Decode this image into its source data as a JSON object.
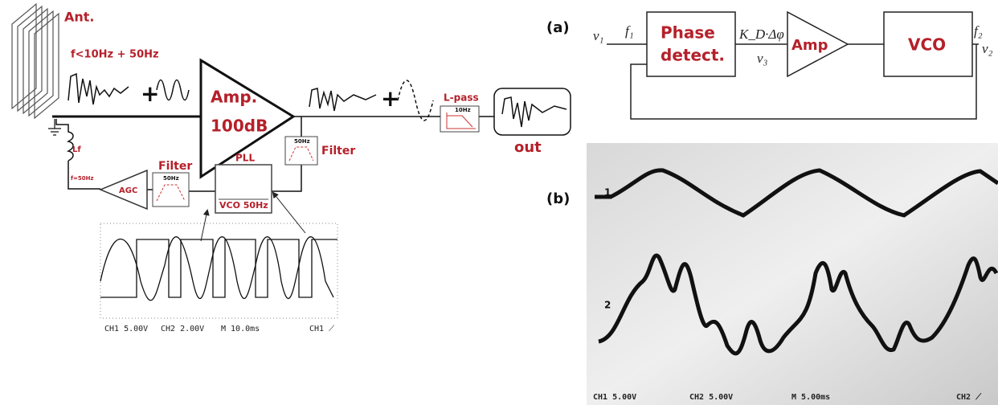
{
  "left": {
    "antenna": "Ant.",
    "input_signal": "f<10Hz + 50Hz",
    "amp_line1": "Amp.",
    "amp_line2": "100dB",
    "lowpass": "L-pass",
    "lowpass_freq": "10Hz",
    "output": "out",
    "filter_right": "Filter",
    "filter_right_freq": "50Hz",
    "pll": "PLL",
    "vco": "VCO 50Hz",
    "filter_left": "Filter",
    "filter_left_freq": "50Hz",
    "agc": "AGC",
    "coil_freq": "f=50Hz",
    "coil": "Lf"
  },
  "scope_left": {
    "ch1": "CH1  5.00V",
    "ch2": "CH2  2.00V",
    "time": "M 10.0ms",
    "trigger": "CH1 ⟋"
  },
  "block_diagram": {
    "panel": "(a)",
    "input": "v₁",
    "input_freq": "f₁",
    "detector_line1": "Phase",
    "detector_line2": "detect.",
    "detector_out": "K_D·Δφ",
    "v3": "v₃",
    "amp": "Amp",
    "vco": "VCO",
    "output_freq": "f₂",
    "output": "v₂"
  },
  "scope_right": {
    "panel": "(b)",
    "trace1": "1",
    "trace2": "2",
    "ch1": "CH1  5.00V",
    "ch2": "CH2  5.00V",
    "time": "M 5.00ms",
    "trigger": "CH2 ⟋"
  }
}
